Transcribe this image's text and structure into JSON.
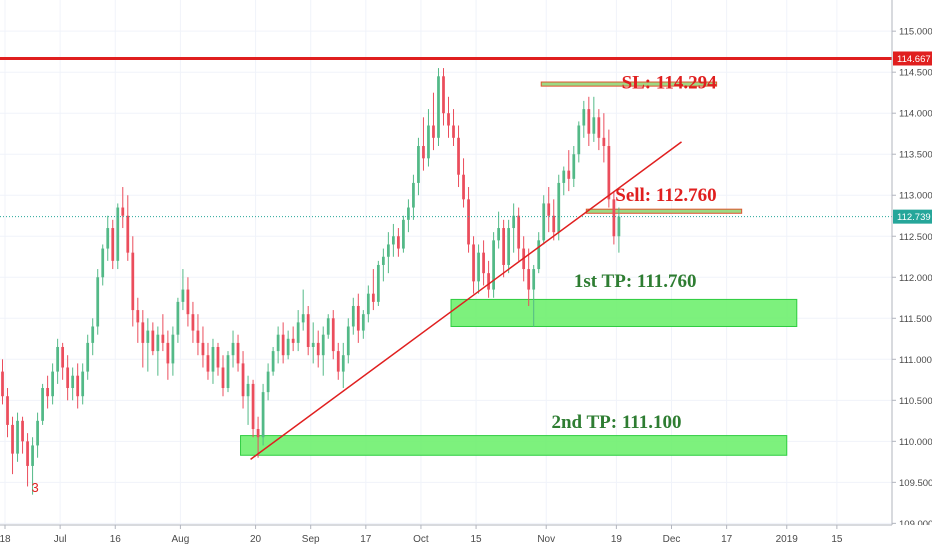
{
  "chart_data": {
    "type": "candlestick",
    "title": "",
    "xlabel": "",
    "ylabel": "",
    "ylim": [
      108.98,
      115.38
    ],
    "y_ticks": [
      109.0,
      109.5,
      110.0,
      110.5,
      111.0,
      111.5,
      112.0,
      112.5,
      113.0,
      113.5,
      114.0,
      114.5,
      115.0
    ],
    "y_tick_labels": [
      "109.000",
      "109.500",
      "110.000",
      "110.500",
      "111.000",
      "111.500",
      "112.000",
      "112.500",
      "113.000",
      "113.500",
      "114.000",
      "114.500",
      "115.000"
    ],
    "x_ticks": [
      "18",
      "Jul",
      "16",
      "Aug",
      "20",
      "Sep",
      "17",
      "Oct",
      "15",
      "Nov",
      "19",
      "Dec",
      "17",
      "2019",
      "15"
    ],
    "x_range": [
      0,
      178
    ],
    "x_tick_positions": [
      1,
      12,
      23,
      36,
      51,
      62,
      73,
      84,
      95,
      109,
      123,
      134,
      145,
      157,
      167
    ],
    "colors": {
      "up": "#53b987",
      "down": "#eb4d5c",
      "red_line": "#e01f1f",
      "zone": "#66ee66",
      "zone_border": "#2ecc40",
      "dotted": "#26a69a",
      "tp_text": "#2e7d32",
      "sl_text": "#e01f1f"
    },
    "candles": [
      {
        "o": 110.85,
        "h": 111.0,
        "l": 110.45,
        "c": 110.55
      },
      {
        "o": 110.55,
        "h": 110.65,
        "l": 110.05,
        "c": 110.2
      },
      {
        "o": 110.2,
        "h": 110.3,
        "l": 109.6,
        "c": 109.85
      },
      {
        "o": 109.85,
        "h": 110.35,
        "l": 109.75,
        "c": 110.25
      },
      {
        "o": 110.25,
        "h": 110.3,
        "l": 109.85,
        "c": 110.0
      },
      {
        "o": 110.0,
        "h": 110.1,
        "l": 109.45,
        "c": 109.7
      },
      {
        "o": 109.7,
        "h": 110.05,
        "l": 109.35,
        "c": 109.95
      },
      {
        "o": 109.95,
        "h": 110.35,
        "l": 109.8,
        "c": 110.25
      },
      {
        "o": 110.25,
        "h": 110.7,
        "l": 110.2,
        "c": 110.65
      },
      {
        "o": 110.65,
        "h": 110.8,
        "l": 110.4,
        "c": 110.55
      },
      {
        "o": 110.55,
        "h": 110.95,
        "l": 110.45,
        "c": 110.85
      },
      {
        "o": 110.85,
        "h": 111.25,
        "l": 110.7,
        "c": 111.15
      },
      {
        "o": 111.15,
        "h": 111.2,
        "l": 110.75,
        "c": 110.9
      },
      {
        "o": 110.9,
        "h": 111.05,
        "l": 110.5,
        "c": 110.65
      },
      {
        "o": 110.65,
        "h": 110.9,
        "l": 110.5,
        "c": 110.8
      },
      {
        "o": 110.8,
        "h": 110.95,
        "l": 110.4,
        "c": 110.55
      },
      {
        "o": 110.55,
        "h": 110.95,
        "l": 110.45,
        "c": 110.85
      },
      {
        "o": 110.85,
        "h": 111.3,
        "l": 110.75,
        "c": 111.2
      },
      {
        "o": 111.2,
        "h": 111.5,
        "l": 111.05,
        "c": 111.4
      },
      {
        "o": 111.4,
        "h": 112.1,
        "l": 111.3,
        "c": 112.0
      },
      {
        "o": 112.0,
        "h": 112.4,
        "l": 111.9,
        "c": 112.35
      },
      {
        "o": 112.35,
        "h": 112.75,
        "l": 112.2,
        "c": 112.6
      },
      {
        "o": 112.6,
        "h": 112.7,
        "l": 112.1,
        "c": 112.2
      },
      {
        "o": 112.2,
        "h": 112.9,
        "l": 112.1,
        "c": 112.85
      },
      {
        "o": 112.85,
        "h": 113.1,
        "l": 112.6,
        "c": 112.75
      },
      {
        "o": 112.75,
        "h": 113.0,
        "l": 112.2,
        "c": 112.3
      },
      {
        "o": 112.3,
        "h": 112.5,
        "l": 111.4,
        "c": 111.6
      },
      {
        "o": 111.6,
        "h": 111.75,
        "l": 111.2,
        "c": 111.45
      },
      {
        "o": 111.45,
        "h": 111.6,
        "l": 110.9,
        "c": 111.2
      },
      {
        "o": 111.2,
        "h": 111.5,
        "l": 110.85,
        "c": 111.35
      },
      {
        "o": 111.35,
        "h": 111.45,
        "l": 111.05,
        "c": 111.1
      },
      {
        "o": 111.1,
        "h": 111.4,
        "l": 110.8,
        "c": 111.3
      },
      {
        "o": 111.3,
        "h": 111.55,
        "l": 111.1,
        "c": 111.2
      },
      {
        "o": 111.2,
        "h": 111.35,
        "l": 110.75,
        "c": 110.95
      },
      {
        "o": 110.95,
        "h": 111.4,
        "l": 110.8,
        "c": 111.3
      },
      {
        "o": 111.3,
        "h": 111.75,
        "l": 111.2,
        "c": 111.7
      },
      {
        "o": 111.7,
        "h": 112.1,
        "l": 111.6,
        "c": 111.85
      },
      {
        "o": 111.85,
        "h": 112.0,
        "l": 111.4,
        "c": 111.55
      },
      {
        "o": 111.55,
        "h": 111.7,
        "l": 111.2,
        "c": 111.35
      },
      {
        "o": 111.35,
        "h": 111.55,
        "l": 111.05,
        "c": 111.2
      },
      {
        "o": 111.2,
        "h": 111.4,
        "l": 110.9,
        "c": 111.05
      },
      {
        "o": 111.05,
        "h": 111.2,
        "l": 110.75,
        "c": 110.85
      },
      {
        "o": 110.85,
        "h": 111.25,
        "l": 110.7,
        "c": 111.15
      },
      {
        "o": 111.15,
        "h": 111.2,
        "l": 110.8,
        "c": 110.9
      },
      {
        "o": 110.9,
        "h": 111.05,
        "l": 110.55,
        "c": 110.65
      },
      {
        "o": 110.65,
        "h": 111.1,
        "l": 110.6,
        "c": 111.05
      },
      {
        "o": 111.05,
        "h": 111.35,
        "l": 110.9,
        "c": 111.2
      },
      {
        "o": 111.2,
        "h": 111.3,
        "l": 110.85,
        "c": 110.95
      },
      {
        "o": 110.95,
        "h": 111.1,
        "l": 110.4,
        "c": 110.55
      },
      {
        "o": 110.55,
        "h": 110.8,
        "l": 110.2,
        "c": 110.7
      },
      {
        "o": 110.7,
        "h": 110.75,
        "l": 110.05,
        "c": 110.15
      },
      {
        "o": 110.15,
        "h": 110.3,
        "l": 109.8,
        "c": 110.05
      },
      {
        "o": 110.05,
        "h": 110.7,
        "l": 109.95,
        "c": 110.6
      },
      {
        "o": 110.6,
        "h": 110.95,
        "l": 110.5,
        "c": 110.85
      },
      {
        "o": 110.85,
        "h": 111.15,
        "l": 110.8,
        "c": 111.1
      },
      {
        "o": 111.1,
        "h": 111.4,
        "l": 110.95,
        "c": 111.3
      },
      {
        "o": 111.3,
        "h": 111.45,
        "l": 110.95,
        "c": 111.05
      },
      {
        "o": 111.05,
        "h": 111.35,
        "l": 111.0,
        "c": 111.25
      },
      {
        "o": 111.25,
        "h": 111.4,
        "l": 111.1,
        "c": 111.2
      },
      {
        "o": 111.2,
        "h": 111.6,
        "l": 111.1,
        "c": 111.45
      },
      {
        "o": 111.45,
        "h": 111.85,
        "l": 111.35,
        "c": 111.55
      },
      {
        "o": 111.55,
        "h": 111.65,
        "l": 111.05,
        "c": 111.15
      },
      {
        "o": 111.15,
        "h": 111.45,
        "l": 110.95,
        "c": 111.2
      },
      {
        "o": 111.2,
        "h": 111.35,
        "l": 110.9,
        "c": 111.05
      },
      {
        "o": 111.05,
        "h": 111.4,
        "l": 110.8,
        "c": 111.3
      },
      {
        "o": 111.3,
        "h": 111.55,
        "l": 111.25,
        "c": 111.5
      },
      {
        "o": 111.5,
        "h": 111.6,
        "l": 111.0,
        "c": 111.1
      },
      {
        "o": 111.1,
        "h": 111.2,
        "l": 110.75,
        "c": 110.85
      },
      {
        "o": 110.85,
        "h": 111.2,
        "l": 110.65,
        "c": 111.05
      },
      {
        "o": 111.05,
        "h": 111.5,
        "l": 110.95,
        "c": 111.4
      },
      {
        "o": 111.4,
        "h": 111.75,
        "l": 111.3,
        "c": 111.65
      },
      {
        "o": 111.65,
        "h": 111.8,
        "l": 111.2,
        "c": 111.35
      },
      {
        "o": 111.35,
        "h": 111.6,
        "l": 111.25,
        "c": 111.55
      },
      {
        "o": 111.55,
        "h": 111.9,
        "l": 111.45,
        "c": 111.8
      },
      {
        "o": 111.8,
        "h": 112.1,
        "l": 111.6,
        "c": 111.7
      },
      {
        "o": 111.7,
        "h": 112.2,
        "l": 111.65,
        "c": 112.15
      },
      {
        "o": 112.15,
        "h": 112.35,
        "l": 111.95,
        "c": 112.25
      },
      {
        "o": 112.25,
        "h": 112.55,
        "l": 112.05,
        "c": 112.4
      },
      {
        "o": 112.4,
        "h": 112.65,
        "l": 112.25,
        "c": 112.5
      },
      {
        "o": 112.5,
        "h": 112.6,
        "l": 112.25,
        "c": 112.35
      },
      {
        "o": 112.35,
        "h": 112.75,
        "l": 112.3,
        "c": 112.7
      },
      {
        "o": 112.7,
        "h": 112.95,
        "l": 112.55,
        "c": 112.85
      },
      {
        "o": 112.85,
        "h": 113.25,
        "l": 112.7,
        "c": 113.15
      },
      {
        "o": 113.15,
        "h": 113.7,
        "l": 113.0,
        "c": 113.6
      },
      {
        "o": 113.6,
        "h": 113.95,
        "l": 113.3,
        "c": 113.45
      },
      {
        "o": 113.45,
        "h": 114.05,
        "l": 113.35,
        "c": 113.85
      },
      {
        "o": 113.85,
        "h": 114.25,
        "l": 113.55,
        "c": 113.7
      },
      {
        "o": 113.7,
        "h": 114.55,
        "l": 113.6,
        "c": 114.45
      },
      {
        "o": 114.45,
        "h": 114.55,
        "l": 113.85,
        "c": 114.0
      },
      {
        "o": 114.0,
        "h": 114.2,
        "l": 113.7,
        "c": 113.85
      },
      {
        "o": 113.85,
        "h": 114.05,
        "l": 113.6,
        "c": 113.7
      },
      {
        "o": 113.7,
        "h": 113.85,
        "l": 113.1,
        "c": 113.25
      },
      {
        "o": 113.25,
        "h": 113.45,
        "l": 112.85,
        "c": 112.95
      },
      {
        "o": 112.95,
        "h": 113.1,
        "l": 112.3,
        "c": 112.4
      },
      {
        "o": 112.4,
        "h": 112.5,
        "l": 111.8,
        "c": 111.95
      },
      {
        "o": 111.95,
        "h": 112.4,
        "l": 111.8,
        "c": 112.3
      },
      {
        "o": 112.3,
        "h": 112.45,
        "l": 111.9,
        "c": 112.05
      },
      {
        "o": 112.05,
        "h": 112.2,
        "l": 111.75,
        "c": 111.85
      },
      {
        "o": 111.85,
        "h": 112.55,
        "l": 111.75,
        "c": 112.45
      },
      {
        "o": 112.45,
        "h": 112.8,
        "l": 112.35,
        "c": 112.6
      },
      {
        "o": 112.6,
        "h": 112.7,
        "l": 112.0,
        "c": 112.15
      },
      {
        "o": 112.15,
        "h": 112.7,
        "l": 112.05,
        "c": 112.6
      },
      {
        "o": 112.6,
        "h": 112.9,
        "l": 112.3,
        "c": 112.75
      },
      {
        "o": 112.75,
        "h": 112.85,
        "l": 112.2,
        "c": 112.35
      },
      {
        "o": 112.35,
        "h": 112.5,
        "l": 111.95,
        "c": 112.1
      },
      {
        "o": 112.1,
        "h": 112.35,
        "l": 111.65,
        "c": 111.85
      },
      {
        "o": 111.85,
        "h": 112.15,
        "l": 111.4,
        "c": 112.1
      },
      {
        "o": 112.1,
        "h": 112.55,
        "l": 112.05,
        "c": 112.45
      },
      {
        "o": 112.45,
        "h": 113.0,
        "l": 112.4,
        "c": 112.9
      },
      {
        "o": 112.9,
        "h": 113.1,
        "l": 112.55,
        "c": 112.75
      },
      {
        "o": 112.75,
        "h": 112.95,
        "l": 112.45,
        "c": 112.55
      },
      {
        "o": 112.55,
        "h": 113.25,
        "l": 112.45,
        "c": 113.15
      },
      {
        "o": 113.15,
        "h": 113.35,
        "l": 113.0,
        "c": 113.3
      },
      {
        "o": 113.3,
        "h": 113.55,
        "l": 113.05,
        "c": 113.2
      },
      {
        "o": 113.2,
        "h": 113.6,
        "l": 113.1,
        "c": 113.5
      },
      {
        "o": 113.5,
        "h": 113.9,
        "l": 113.4,
        "c": 113.85
      },
      {
        "o": 113.85,
        "h": 114.15,
        "l": 113.7,
        "c": 114.05
      },
      {
        "o": 114.05,
        "h": 114.2,
        "l": 113.6,
        "c": 113.75
      },
      {
        "o": 113.75,
        "h": 114.2,
        "l": 113.65,
        "c": 113.95
      },
      {
        "o": 113.95,
        "h": 114.05,
        "l": 113.55,
        "c": 113.7
      },
      {
        "o": 113.7,
        "h": 114.0,
        "l": 113.4,
        "c": 113.6
      },
      {
        "o": 113.6,
        "h": 113.8,
        "l": 112.85,
        "c": 112.95
      },
      {
        "o": 112.95,
        "h": 113.05,
        "l": 112.4,
        "c": 112.5
      },
      {
        "o": 112.5,
        "h": 112.85,
        "l": 112.3,
        "c": 112.74
      }
    ],
    "trend_line": {
      "x1": 50,
      "y1": 109.78,
      "x2": 136,
      "y2": 113.65
    },
    "sl_line": {
      "value": 114.667,
      "label": "114.667"
    },
    "current_price": {
      "value": 112.739,
      "label": "112.739"
    },
    "zones": [
      {
        "name": "sl-bar",
        "x1": 108,
        "x2": 143,
        "y1": 114.33,
        "y2": 114.38
      },
      {
        "name": "sell-bar",
        "x1": 117,
        "x2": 148,
        "y1": 112.78,
        "y2": 112.83
      },
      {
        "name": "tp1-zone",
        "x1": 90,
        "x2": 159,
        "y1": 111.4,
        "y2": 111.73
      },
      {
        "name": "tp2-zone",
        "x1": 48,
        "x2": 157,
        "y1": 109.83,
        "y2": 110.07
      }
    ],
    "annotations": [
      {
        "name": "sl-annotation",
        "text": "SL: 114.294",
        "x": 143,
        "y": 114.3,
        "color": "#e01f1f"
      },
      {
        "name": "sell-annotation",
        "text": "Sell: 112.760",
        "x": 143,
        "y": 112.93,
        "color": "#e01f1f"
      },
      {
        "name": "tp1-annotation",
        "text": "1st TP: 111.760",
        "x": 139,
        "y": 111.88,
        "color": "#2e7d32"
      },
      {
        "name": "tp2-annotation",
        "text": "2nd TP: 111.100",
        "x": 136,
        "y": 110.16,
        "color": "#2e7d32"
      },
      {
        "name": "marker-3",
        "text": "3",
        "x": 7,
        "y": 109.38,
        "color": "#e01f1f"
      }
    ]
  }
}
